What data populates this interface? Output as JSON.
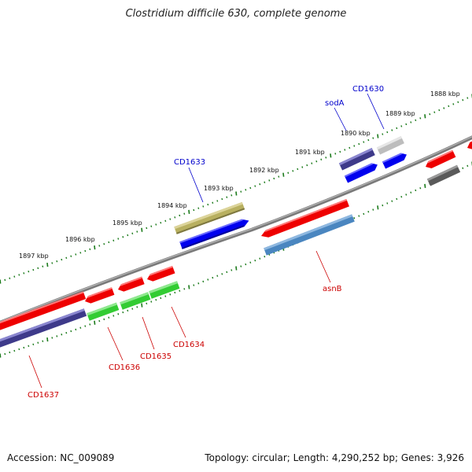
{
  "title": "Clostridium difficile 630, complete genome",
  "footer": {
    "accession": "Accession: NC_009089",
    "topology": "Topology: circular; Length: 4,290,252 bp; Genes: 3,926"
  },
  "colors": {
    "backbone": "#808080",
    "tick": "#1a7a1a",
    "label_forward": "#0000cc",
    "label_reverse": "#cc0000"
  },
  "scale_labels": [
    "1897 kbp",
    "1896 kbp",
    "1895 kbp",
    "1894 kbp",
    "1893 kbp",
    "1892 kbp",
    "1891 kbp",
    "1890 kbp",
    "1889 kbp",
    "1888 kbp"
  ],
  "gene_labels_forward": [
    "CD1633",
    "sodA",
    "CD1630"
  ],
  "gene_labels_reverse": [
    "asnB",
    "CD1634",
    "CD1635",
    "CD1636",
    "CD1637"
  ]
}
